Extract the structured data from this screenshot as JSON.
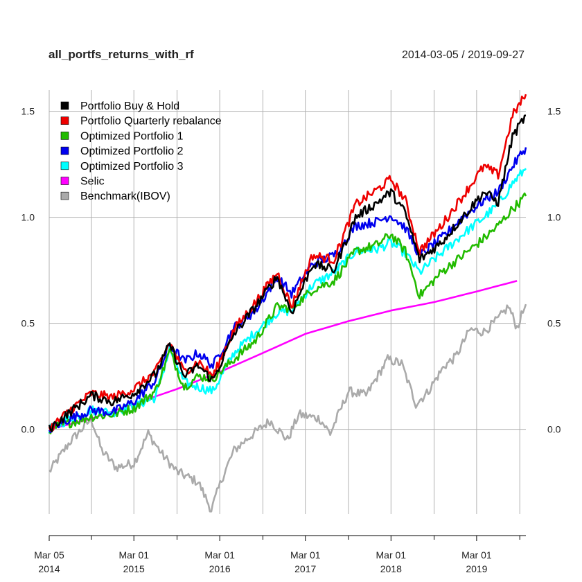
{
  "chart_data": {
    "type": "line",
    "title": "all_portfs_returns_with_rf",
    "date_range": "2014-03-05 / 2019-09-27",
    "ylim": [
      -0.4,
      1.6
    ],
    "y_ticks": [
      0.0,
      0.5,
      1.0,
      1.5
    ],
    "y_tick_labels": [
      "0.0",
      "0.5",
      "1.0",
      "1.5"
    ],
    "x_range": [
      "2014-03-05",
      "2019-09-27"
    ],
    "x_ticks": [
      {
        "date": "2014-03-05",
        "line1": "Mar 05",
        "line2": "2014"
      },
      {
        "date": "2015-03-01",
        "line1": "Mar 01",
        "line2": "2015"
      },
      {
        "date": "2016-03-01",
        "line1": "Mar 01",
        "line2": "2016"
      },
      {
        "date": "2017-03-01",
        "line1": "Mar 01",
        "line2": "2017"
      },
      {
        "date": "2018-03-01",
        "line1": "Mar 01",
        "line2": "2018"
      },
      {
        "date": "2019-03-01",
        "line1": "Mar 01",
        "line2": "2019"
      }
    ],
    "minor_ticks": [
      "2014-09-01",
      "2015-09-01",
      "2016-09-01",
      "2017-09-01",
      "2018-09-01",
      "2019-09-01"
    ],
    "grid": true,
    "legend_position": "top-left",
    "series": [
      {
        "name": "Portfolio Buy & Hold",
        "color": "#000000",
        "points": [
          [
            "2014-03-05",
            0.0
          ],
          [
            "2014-06-01",
            0.08
          ],
          [
            "2014-09-01",
            0.16
          ],
          [
            "2014-12-01",
            0.13
          ],
          [
            "2015-03-01",
            0.17
          ],
          [
            "2015-06-01",
            0.26
          ],
          [
            "2015-08-01",
            0.4
          ],
          [
            "2015-10-01",
            0.25
          ],
          [
            "2015-12-01",
            0.3
          ],
          [
            "2016-02-01",
            0.23
          ],
          [
            "2016-05-01",
            0.45
          ],
          [
            "2016-08-01",
            0.58
          ],
          [
            "2016-11-01",
            0.72
          ],
          [
            "2017-01-01",
            0.55
          ],
          [
            "2017-04-01",
            0.78
          ],
          [
            "2017-07-01",
            0.75
          ],
          [
            "2017-10-01",
            1.0
          ],
          [
            "2018-01-01",
            1.07
          ],
          [
            "2018-03-01",
            1.12
          ],
          [
            "2018-05-01",
            1.02
          ],
          [
            "2018-07-01",
            0.8
          ],
          [
            "2018-10-01",
            0.88
          ],
          [
            "2019-01-01",
            1.0
          ],
          [
            "2019-04-01",
            1.12
          ],
          [
            "2019-06-01",
            1.07
          ],
          [
            "2019-08-01",
            1.38
          ],
          [
            "2019-09-27",
            1.48
          ]
        ]
      },
      {
        "name": "Portfolio Quarterly rebalance",
        "color": "#ee0000",
        "points": [
          [
            "2014-03-05",
            0.0
          ],
          [
            "2014-06-01",
            0.09
          ],
          [
            "2014-09-01",
            0.17
          ],
          [
            "2014-12-01",
            0.15
          ],
          [
            "2015-03-01",
            0.19
          ],
          [
            "2015-06-01",
            0.27
          ],
          [
            "2015-08-01",
            0.41
          ],
          [
            "2015-10-01",
            0.27
          ],
          [
            "2015-12-01",
            0.32
          ],
          [
            "2016-02-01",
            0.25
          ],
          [
            "2016-05-01",
            0.47
          ],
          [
            "2016-08-01",
            0.6
          ],
          [
            "2016-11-01",
            0.74
          ],
          [
            "2017-01-01",
            0.58
          ],
          [
            "2017-04-01",
            0.82
          ],
          [
            "2017-07-01",
            0.8
          ],
          [
            "2017-10-01",
            1.06
          ],
          [
            "2018-01-01",
            1.13
          ],
          [
            "2018-03-01",
            1.18
          ],
          [
            "2018-05-01",
            1.08
          ],
          [
            "2018-07-01",
            0.84
          ],
          [
            "2018-10-01",
            0.96
          ],
          [
            "2019-01-01",
            1.1
          ],
          [
            "2019-04-01",
            1.24
          ],
          [
            "2019-06-01",
            1.2
          ],
          [
            "2019-08-01",
            1.48
          ],
          [
            "2019-09-27",
            1.58
          ]
        ]
      },
      {
        "name": "Optimized Portfolio 1",
        "color": "#22bb00",
        "points": [
          [
            "2014-03-05",
            0.0
          ],
          [
            "2014-06-01",
            0.03
          ],
          [
            "2014-09-01",
            0.06
          ],
          [
            "2014-12-01",
            0.07
          ],
          [
            "2015-03-01",
            0.1
          ],
          [
            "2015-06-01",
            0.18
          ],
          [
            "2015-08-01",
            0.37
          ],
          [
            "2015-10-01",
            0.2
          ],
          [
            "2015-12-01",
            0.25
          ],
          [
            "2016-02-01",
            0.24
          ],
          [
            "2016-05-01",
            0.33
          ],
          [
            "2016-08-01",
            0.42
          ],
          [
            "2016-11-01",
            0.58
          ],
          [
            "2017-01-01",
            0.57
          ],
          [
            "2017-04-01",
            0.66
          ],
          [
            "2017-07-01",
            0.7
          ],
          [
            "2017-10-01",
            0.84
          ],
          [
            "2018-01-01",
            0.87
          ],
          [
            "2018-03-01",
            0.92
          ],
          [
            "2018-05-01",
            0.84
          ],
          [
            "2018-07-01",
            0.63
          ],
          [
            "2018-10-01",
            0.74
          ],
          [
            "2019-01-01",
            0.82
          ],
          [
            "2019-04-01",
            0.9
          ],
          [
            "2019-06-01",
            0.96
          ],
          [
            "2019-08-01",
            1.04
          ],
          [
            "2019-09-27",
            1.1
          ]
        ]
      },
      {
        "name": "Optimized Portfolio 2",
        "color": "#0000ee",
        "points": [
          [
            "2014-03-05",
            0.0
          ],
          [
            "2014-06-01",
            0.05
          ],
          [
            "2014-09-01",
            0.09
          ],
          [
            "2014-12-01",
            0.08
          ],
          [
            "2015-03-01",
            0.13
          ],
          [
            "2015-06-01",
            0.23
          ],
          [
            "2015-08-01",
            0.4
          ],
          [
            "2015-10-01",
            0.32
          ],
          [
            "2015-12-01",
            0.36
          ],
          [
            "2016-02-01",
            0.3
          ],
          [
            "2016-05-01",
            0.48
          ],
          [
            "2016-08-01",
            0.56
          ],
          [
            "2016-11-01",
            0.72
          ],
          [
            "2017-01-01",
            0.64
          ],
          [
            "2017-04-01",
            0.78
          ],
          [
            "2017-07-01",
            0.82
          ],
          [
            "2017-10-01",
            0.96
          ],
          [
            "2018-01-01",
            0.98
          ],
          [
            "2018-03-01",
            1.01
          ],
          [
            "2018-05-01",
            0.95
          ],
          [
            "2018-07-01",
            0.82
          ],
          [
            "2018-10-01",
            0.9
          ],
          [
            "2019-01-01",
            1.0
          ],
          [
            "2019-04-01",
            1.08
          ],
          [
            "2019-06-01",
            1.12
          ],
          [
            "2019-08-01",
            1.24
          ],
          [
            "2019-09-27",
            1.33
          ]
        ]
      },
      {
        "name": "Optimized Portfolio 3",
        "color": "#00ffff",
        "points": [
          [
            "2014-03-05",
            0.0
          ],
          [
            "2014-06-01",
            0.05
          ],
          [
            "2014-09-01",
            0.09
          ],
          [
            "2014-12-01",
            0.08
          ],
          [
            "2015-03-01",
            0.11
          ],
          [
            "2015-06-01",
            0.15
          ],
          [
            "2015-08-01",
            0.38
          ],
          [
            "2015-10-01",
            0.22
          ],
          [
            "2015-12-01",
            0.2
          ],
          [
            "2016-02-01",
            0.18
          ],
          [
            "2016-05-01",
            0.36
          ],
          [
            "2016-08-01",
            0.46
          ],
          [
            "2016-11-01",
            0.55
          ],
          [
            "2017-01-01",
            0.56
          ],
          [
            "2017-04-01",
            0.68
          ],
          [
            "2017-07-01",
            0.74
          ],
          [
            "2017-10-01",
            0.84
          ],
          [
            "2018-01-01",
            0.85
          ],
          [
            "2018-03-01",
            0.88
          ],
          [
            "2018-05-01",
            0.83
          ],
          [
            "2018-07-01",
            0.74
          ],
          [
            "2018-10-01",
            0.83
          ],
          [
            "2019-01-01",
            0.92
          ],
          [
            "2019-04-01",
            1.0
          ],
          [
            "2019-06-01",
            1.06
          ],
          [
            "2019-08-01",
            1.16
          ],
          [
            "2019-09-27",
            1.23
          ]
        ]
      },
      {
        "name": "Selic",
        "color": "#ff00ff",
        "points": [
          [
            "2014-03-05",
            0.0
          ],
          [
            "2014-09-01",
            0.05
          ],
          [
            "2015-03-01",
            0.12
          ],
          [
            "2015-09-01",
            0.19
          ],
          [
            "2016-03-01",
            0.27
          ],
          [
            "2016-09-01",
            0.36
          ],
          [
            "2017-03-01",
            0.45
          ],
          [
            "2017-09-01",
            0.51
          ],
          [
            "2018-03-01",
            0.56
          ],
          [
            "2018-09-01",
            0.6
          ],
          [
            "2019-03-01",
            0.65
          ],
          [
            "2019-08-20",
            0.7
          ]
        ]
      },
      {
        "name": "Benchmark(IBOV)",
        "color": "#aaaaaa",
        "points": [
          [
            "2014-03-05",
            -0.2
          ],
          [
            "2014-06-01",
            -0.06
          ],
          [
            "2014-09-01",
            0.05
          ],
          [
            "2014-10-15",
            -0.1
          ],
          [
            "2014-12-15",
            -0.18
          ],
          [
            "2015-03-01",
            -0.16
          ],
          [
            "2015-05-01",
            -0.02
          ],
          [
            "2015-07-01",
            -0.12
          ],
          [
            "2015-09-01",
            -0.2
          ],
          [
            "2015-12-01",
            -0.25
          ],
          [
            "2016-01-25",
            -0.38
          ],
          [
            "2016-03-15",
            -0.22
          ],
          [
            "2016-05-01",
            -0.1
          ],
          [
            "2016-07-01",
            -0.04
          ],
          [
            "2016-10-01",
            0.04
          ],
          [
            "2016-12-15",
            -0.05
          ],
          [
            "2017-02-01",
            0.07
          ],
          [
            "2017-05-01",
            0.05
          ],
          [
            "2017-06-15",
            -0.02
          ],
          [
            "2017-09-01",
            0.18
          ],
          [
            "2017-11-15",
            0.16
          ],
          [
            "2018-02-15",
            0.33
          ],
          [
            "2018-04-15",
            0.31
          ],
          [
            "2018-06-15",
            0.12
          ],
          [
            "2018-08-01",
            0.17
          ],
          [
            "2018-10-15",
            0.3
          ],
          [
            "2018-12-01",
            0.34
          ],
          [
            "2019-02-01",
            0.47
          ],
          [
            "2019-04-01",
            0.46
          ],
          [
            "2019-06-01",
            0.52
          ],
          [
            "2019-07-15",
            0.58
          ],
          [
            "2019-08-20",
            0.48
          ],
          [
            "2019-09-27",
            0.59
          ]
        ]
      }
    ]
  }
}
